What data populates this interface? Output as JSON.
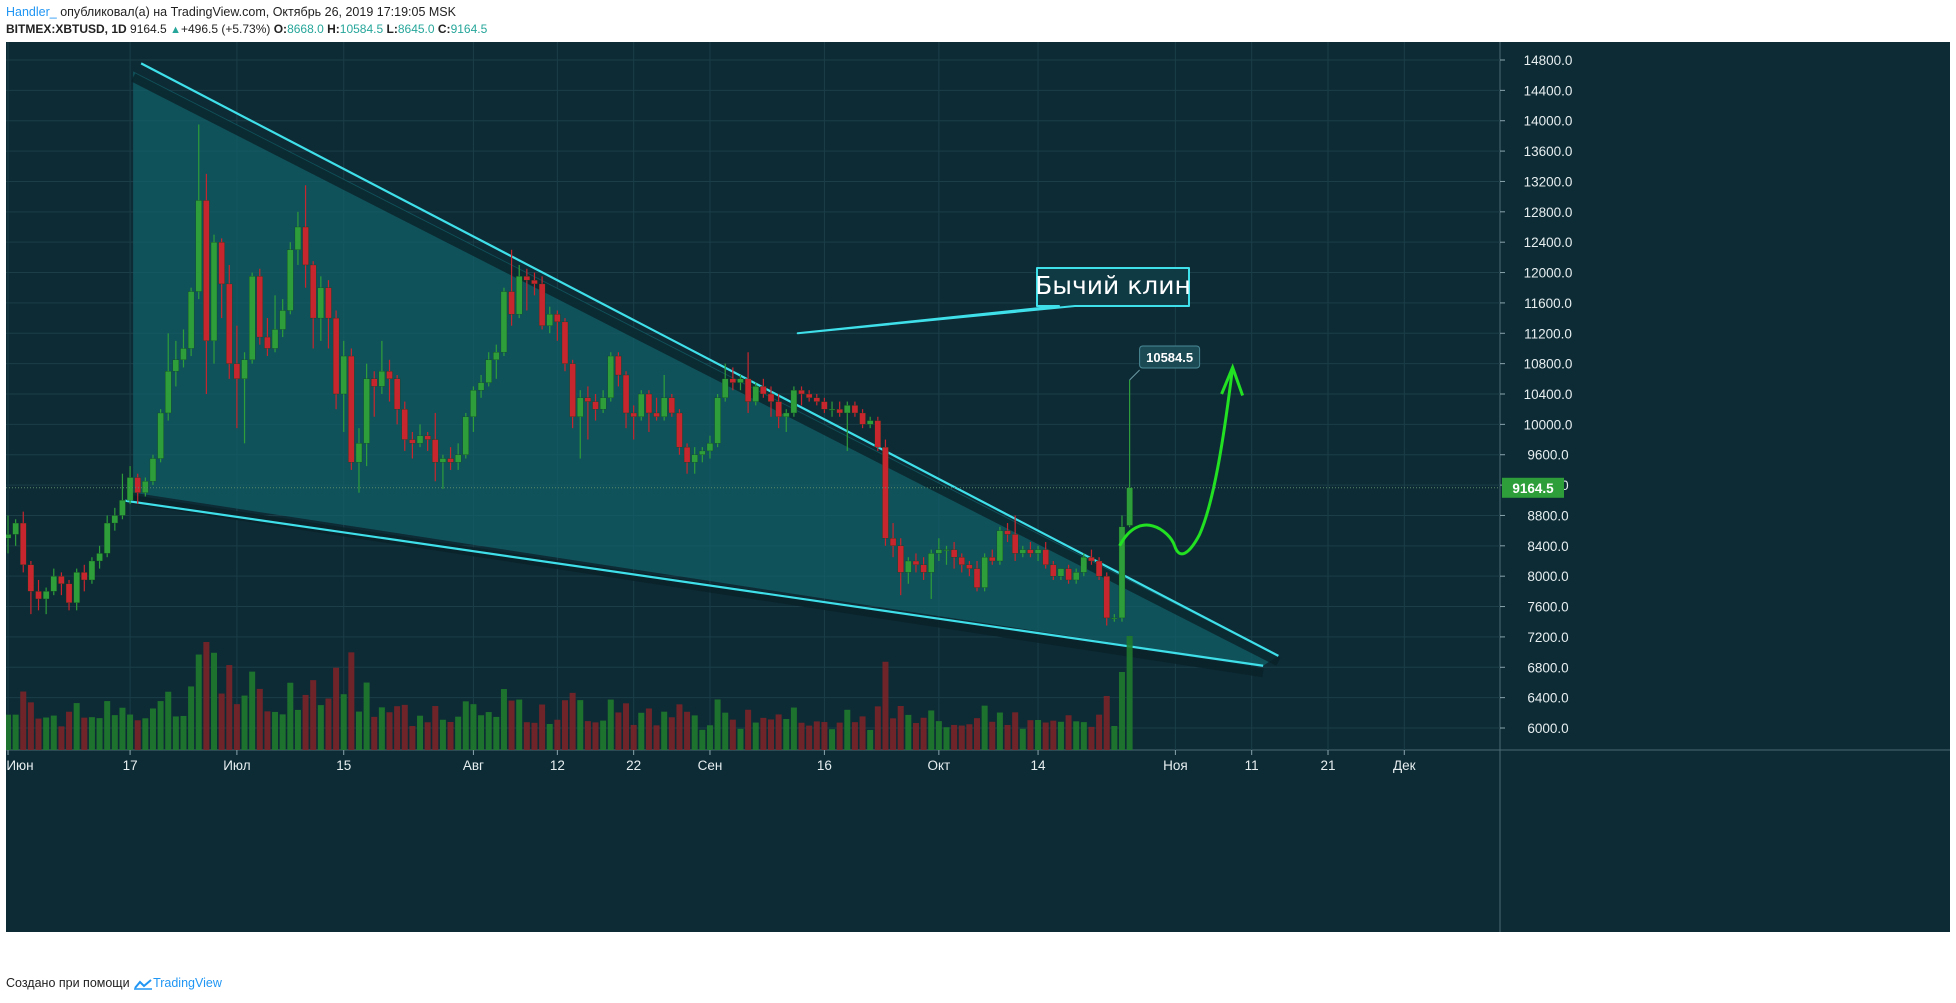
{
  "header": {
    "author": "Handler_",
    "published_text": " опубликовал(а) на TradingView.com, Октябрь 26, 2019 17:19:05 MSK",
    "symbol": "BITMEX:XBTUSD, 1D",
    "last_price": "9164.5",
    "change": "+496.5 (+5.73%)",
    "ohlc": {
      "o_label": "O:",
      "o": "8668.0",
      "h_label": "H:",
      "h": "10584.5",
      "l_label": "L:",
      "l": "8645.0",
      "c_label": "C:",
      "c": "9164.5"
    }
  },
  "footer": {
    "created_with": "Создано при помощи",
    "brand": "TradingView"
  },
  "colors": {
    "background": "#0d2b35",
    "grid": "#1b3e48",
    "up": "#26a69a",
    "up_candle": "#2e9e3a",
    "down_candle": "#c8262e",
    "wedge_line": "#3fe0ea",
    "wedge_fill": "#126169",
    "projection": "#22e022",
    "price_tag": "#2e9e3a"
  },
  "chart_data": {
    "type": "candlestick",
    "title": "",
    "x_tick_labels": [
      "Июн",
      "17",
      "Июл",
      "15",
      "Авг",
      "12",
      "22",
      "Сен",
      "16",
      "Окт",
      "14",
      "Ноя",
      "11",
      "21",
      "Дек"
    ],
    "y_tick_labels": [
      "14800.0",
      "14400.0",
      "14000.0",
      "13600.0",
      "13200.0",
      "12800.0",
      "12400.0",
      "12000.0",
      "11600.0",
      "11200.0",
      "10800.0",
      "10400.0",
      "10000.0",
      "9600.0",
      "9200.0",
      "8800.0",
      "8400.0",
      "8000.0",
      "7600.0",
      "7200.0",
      "6800.0",
      "6400.0",
      "6000.0"
    ],
    "ylim": [
      5800,
      15000
    ],
    "last_price_label": "9164.5",
    "high_marker": {
      "label": "10584.5",
      "value": 10584.5
    },
    "annotation": {
      "text": "Бычий клин"
    },
    "candles": [
      {
        "d": "2019-06-01",
        "o": 8500,
        "h": 8800,
        "l": 8300,
        "c": 8550
      },
      {
        "d": "2019-06-02",
        "o": 8550,
        "h": 8750,
        "l": 8400,
        "c": 8700
      },
      {
        "d": "2019-06-03",
        "o": 8700,
        "h": 8850,
        "l": 8050,
        "c": 8150
      },
      {
        "d": "2019-06-04",
        "o": 8150,
        "h": 8200,
        "l": 7500,
        "c": 7800
      },
      {
        "d": "2019-06-05",
        "o": 7800,
        "h": 7950,
        "l": 7550,
        "c": 7700
      },
      {
        "d": "2019-06-06",
        "o": 7700,
        "h": 7850,
        "l": 7500,
        "c": 7800
      },
      {
        "d": "2019-06-07",
        "o": 7800,
        "h": 8100,
        "l": 7750,
        "c": 8000
      },
      {
        "d": "2019-06-08",
        "o": 8000,
        "h": 8050,
        "l": 7750,
        "c": 7900
      },
      {
        "d": "2019-06-09",
        "o": 7900,
        "h": 7950,
        "l": 7550,
        "c": 7650
      },
      {
        "d": "2019-06-10",
        "o": 7650,
        "h": 8100,
        "l": 7550,
        "c": 8050
      },
      {
        "d": "2019-06-11",
        "o": 8050,
        "h": 8150,
        "l": 7800,
        "c": 7950
      },
      {
        "d": "2019-06-12",
        "o": 7950,
        "h": 8250,
        "l": 7900,
        "c": 8200
      },
      {
        "d": "2019-06-13",
        "o": 8200,
        "h": 8400,
        "l": 8100,
        "c": 8300
      },
      {
        "d": "2019-06-14",
        "o": 8300,
        "h": 8800,
        "l": 8250,
        "c": 8700
      },
      {
        "d": "2019-06-15",
        "o": 8700,
        "h": 8900,
        "l": 8600,
        "c": 8800
      },
      {
        "d": "2019-06-16",
        "o": 8800,
        "h": 9350,
        "l": 8750,
        "c": 9000
      },
      {
        "d": "2019-06-17",
        "o": 9000,
        "h": 9450,
        "l": 8950,
        "c": 9300
      },
      {
        "d": "2019-06-18",
        "o": 9300,
        "h": 9350,
        "l": 8950,
        "c": 9100
      },
      {
        "d": "2019-06-19",
        "o": 9100,
        "h": 9300,
        "l": 9050,
        "c": 9250
      },
      {
        "d": "2019-06-20",
        "o": 9250,
        "h": 9600,
        "l": 9200,
        "c": 9550
      },
      {
        "d": "2019-06-21",
        "o": 9550,
        "h": 10200,
        "l": 9500,
        "c": 10150
      },
      {
        "d": "2019-06-22",
        "o": 10150,
        "h": 11200,
        "l": 10050,
        "c": 10700
      },
      {
        "d": "2019-06-23",
        "o": 10700,
        "h": 11100,
        "l": 10500,
        "c": 10850
      },
      {
        "d": "2019-06-24",
        "o": 10850,
        "h": 11250,
        "l": 10750,
        "c": 11000
      },
      {
        "d": "2019-06-25",
        "o": 11000,
        "h": 11800,
        "l": 10900,
        "c": 11750
      },
      {
        "d": "2019-06-26",
        "o": 11750,
        "h": 13950,
        "l": 11650,
        "c": 12950
      },
      {
        "d": "2019-06-27",
        "o": 12950,
        "h": 13300,
        "l": 10400,
        "c": 11100
      },
      {
        "d": "2019-06-28",
        "o": 11100,
        "h": 12500,
        "l": 10800,
        "c": 12400
      },
      {
        "d": "2019-06-29",
        "o": 12400,
        "h": 12450,
        "l": 11400,
        "c": 11850
      },
      {
        "d": "2019-06-30",
        "o": 11850,
        "h": 12100,
        "l": 10600,
        "c": 10800
      },
      {
        "d": "2019-07-01",
        "o": 10800,
        "h": 11300,
        "l": 9950,
        "c": 10600
      },
      {
        "d": "2019-07-02",
        "o": 10600,
        "h": 10950,
        "l": 9750,
        "c": 10850
      },
      {
        "d": "2019-07-03",
        "o": 10850,
        "h": 12000,
        "l": 10800,
        "c": 11950
      },
      {
        "d": "2019-07-04",
        "o": 11950,
        "h": 12050,
        "l": 11050,
        "c": 11150
      },
      {
        "d": "2019-07-05",
        "o": 11150,
        "h": 11400,
        "l": 10900,
        "c": 11000
      },
      {
        "d": "2019-07-06",
        "o": 11000,
        "h": 11700,
        "l": 10950,
        "c": 11250
      },
      {
        "d": "2019-07-07",
        "o": 11250,
        "h": 11650,
        "l": 11150,
        "c": 11500
      },
      {
        "d": "2019-07-08",
        "o": 11500,
        "h": 12400,
        "l": 11450,
        "c": 12300
      },
      {
        "d": "2019-07-09",
        "o": 12300,
        "h": 12800,
        "l": 12100,
        "c": 12600
      },
      {
        "d": "2019-07-10",
        "o": 12600,
        "h": 13150,
        "l": 11800,
        "c": 12100
      },
      {
        "d": "2019-07-11",
        "o": 12100,
        "h": 12150,
        "l": 11000,
        "c": 11400
      },
      {
        "d": "2019-07-12",
        "o": 11400,
        "h": 11950,
        "l": 11100,
        "c": 11800
      },
      {
        "d": "2019-07-13",
        "o": 11800,
        "h": 11900,
        "l": 11000,
        "c": 11400
      },
      {
        "d": "2019-07-14",
        "o": 11400,
        "h": 11500,
        "l": 10200,
        "c": 10400
      },
      {
        "d": "2019-07-15",
        "o": 10400,
        "h": 11100,
        "l": 9900,
        "c": 10900
      },
      {
        "d": "2019-07-16",
        "o": 10900,
        "h": 11000,
        "l": 9400,
        "c": 9500
      },
      {
        "d": "2019-07-17",
        "o": 9500,
        "h": 9950,
        "l": 9100,
        "c": 9750
      },
      {
        "d": "2019-07-18",
        "o": 9750,
        "h": 10800,
        "l": 9450,
        "c": 10600
      },
      {
        "d": "2019-07-19",
        "o": 10600,
        "h": 10700,
        "l": 10100,
        "c": 10500
      },
      {
        "d": "2019-07-20",
        "o": 10500,
        "h": 11100,
        "l": 10400,
        "c": 10700
      },
      {
        "d": "2019-07-21",
        "o": 10700,
        "h": 10850,
        "l": 10300,
        "c": 10600
      },
      {
        "d": "2019-07-22",
        "o": 10600,
        "h": 10650,
        "l": 10000,
        "c": 10200
      },
      {
        "d": "2019-07-23",
        "o": 10200,
        "h": 10300,
        "l": 9650,
        "c": 9800
      },
      {
        "d": "2019-07-24",
        "o": 9800,
        "h": 9900,
        "l": 9550,
        "c": 9750
      },
      {
        "d": "2019-07-25",
        "o": 9750,
        "h": 10000,
        "l": 9700,
        "c": 9850
      },
      {
        "d": "2019-07-26",
        "o": 9850,
        "h": 9900,
        "l": 9650,
        "c": 9800
      },
      {
        "d": "2019-07-27",
        "o": 9800,
        "h": 10150,
        "l": 9250,
        "c": 9500
      },
      {
        "d": "2019-07-28",
        "o": 9500,
        "h": 9600,
        "l": 9150,
        "c": 9550
      },
      {
        "d": "2019-07-29",
        "o": 9550,
        "h": 9700,
        "l": 9400,
        "c": 9500
      },
      {
        "d": "2019-07-30",
        "o": 9500,
        "h": 9750,
        "l": 9400,
        "c": 9600
      },
      {
        "d": "2019-07-31",
        "o": 9600,
        "h": 10150,
        "l": 9550,
        "c": 10100
      },
      {
        "d": "2019-08-01",
        "o": 10100,
        "h": 10500,
        "l": 9900,
        "c": 10450
      },
      {
        "d": "2019-08-02",
        "o": 10450,
        "h": 10650,
        "l": 10350,
        "c": 10550
      },
      {
        "d": "2019-08-03",
        "o": 10550,
        "h": 10950,
        "l": 10500,
        "c": 10850
      },
      {
        "d": "2019-08-04",
        "o": 10850,
        "h": 11050,
        "l": 10600,
        "c": 10950
      },
      {
        "d": "2019-08-05",
        "o": 10950,
        "h": 11800,
        "l": 10900,
        "c": 11750
      },
      {
        "d": "2019-08-06",
        "o": 11750,
        "h": 12300,
        "l": 11300,
        "c": 11450
      },
      {
        "d": "2019-08-07",
        "o": 11450,
        "h": 12100,
        "l": 11400,
        "c": 11950
      },
      {
        "d": "2019-08-08",
        "o": 11950,
        "h": 12050,
        "l": 11500,
        "c": 11900
      },
      {
        "d": "2019-08-09",
        "o": 11900,
        "h": 12000,
        "l": 11700,
        "c": 11850
      },
      {
        "d": "2019-08-10",
        "o": 11850,
        "h": 11950,
        "l": 11250,
        "c": 11300
      },
      {
        "d": "2019-08-11",
        "o": 11300,
        "h": 11550,
        "l": 11200,
        "c": 11450
      },
      {
        "d": "2019-08-12",
        "o": 11450,
        "h": 11500,
        "l": 11100,
        "c": 11350
      },
      {
        "d": "2019-08-13",
        "o": 11350,
        "h": 11400,
        "l": 10700,
        "c": 10800
      },
      {
        "d": "2019-08-14",
        "o": 10800,
        "h": 10850,
        "l": 9950,
        "c": 10100
      },
      {
        "d": "2019-08-15",
        "o": 10100,
        "h": 10450,
        "l": 9550,
        "c": 10350
      },
      {
        "d": "2019-08-16",
        "o": 10350,
        "h": 10500,
        "l": 9800,
        "c": 10300
      },
      {
        "d": "2019-08-17",
        "o": 10300,
        "h": 10400,
        "l": 10050,
        "c": 10200
      },
      {
        "d": "2019-08-18",
        "o": 10200,
        "h": 10450,
        "l": 10150,
        "c": 10350
      },
      {
        "d": "2019-08-19",
        "o": 10350,
        "h": 10950,
        "l": 10300,
        "c": 10900
      },
      {
        "d": "2019-08-20",
        "o": 10900,
        "h": 10950,
        "l": 10500,
        "c": 10650
      },
      {
        "d": "2019-08-21",
        "o": 10650,
        "h": 10700,
        "l": 9950,
        "c": 10150
      },
      {
        "d": "2019-08-22",
        "o": 10150,
        "h": 10250,
        "l": 9800,
        "c": 10100
      },
      {
        "d": "2019-08-23",
        "o": 10100,
        "h": 10450,
        "l": 10050,
        "c": 10400
      },
      {
        "d": "2019-08-24",
        "o": 10400,
        "h": 10450,
        "l": 9900,
        "c": 10150
      },
      {
        "d": "2019-08-25",
        "o": 10150,
        "h": 10350,
        "l": 10050,
        "c": 10100
      },
      {
        "d": "2019-08-26",
        "o": 10100,
        "h": 10650,
        "l": 10050,
        "c": 10350
      },
      {
        "d": "2019-08-27",
        "o": 10350,
        "h": 10400,
        "l": 10100,
        "c": 10150
      },
      {
        "d": "2019-08-28",
        "o": 10150,
        "h": 10200,
        "l": 9600,
        "c": 9700
      },
      {
        "d": "2019-08-29",
        "o": 9700,
        "h": 9750,
        "l": 9350,
        "c": 9500
      },
      {
        "d": "2019-08-30",
        "o": 9500,
        "h": 9700,
        "l": 9350,
        "c": 9600
      },
      {
        "d": "2019-08-31",
        "o": 9600,
        "h": 9700,
        "l": 9500,
        "c": 9650
      },
      {
        "d": "2019-09-01",
        "o": 9650,
        "h": 9850,
        "l": 9550,
        "c": 9750
      },
      {
        "d": "2019-09-02",
        "o": 9750,
        "h": 10400,
        "l": 9700,
        "c": 10350
      },
      {
        "d": "2019-09-03",
        "o": 10350,
        "h": 10800,
        "l": 10300,
        "c": 10600
      },
      {
        "d": "2019-09-04",
        "o": 10600,
        "h": 10750,
        "l": 10450,
        "c": 10550
      },
      {
        "d": "2019-09-05",
        "o": 10550,
        "h": 10650,
        "l": 10450,
        "c": 10600
      },
      {
        "d": "2019-09-06",
        "o": 10600,
        "h": 10950,
        "l": 10150,
        "c": 10300
      },
      {
        "d": "2019-09-07",
        "o": 10300,
        "h": 10550,
        "l": 10250,
        "c": 10500
      },
      {
        "d": "2019-09-08",
        "o": 10500,
        "h": 10600,
        "l": 10350,
        "c": 10400
      },
      {
        "d": "2019-09-09",
        "o": 10400,
        "h": 10500,
        "l": 10100,
        "c": 10300
      },
      {
        "d": "2019-09-10",
        "o": 10300,
        "h": 10400,
        "l": 9950,
        "c": 10100
      },
      {
        "d": "2019-09-11",
        "o": 10100,
        "h": 10200,
        "l": 9900,
        "c": 10150
      },
      {
        "d": "2019-09-12",
        "o": 10150,
        "h": 10500,
        "l": 10100,
        "c": 10450
      },
      {
        "d": "2019-09-13",
        "o": 10450,
        "h": 10500,
        "l": 10250,
        "c": 10400
      },
      {
        "d": "2019-09-14",
        "o": 10400,
        "h": 10450,
        "l": 10300,
        "c": 10350
      },
      {
        "d": "2019-09-15",
        "o": 10350,
        "h": 10400,
        "l": 10250,
        "c": 10300
      },
      {
        "d": "2019-09-16",
        "o": 10300,
        "h": 10350,
        "l": 10150,
        "c": 10200
      },
      {
        "d": "2019-09-17",
        "o": 10200,
        "h": 10300,
        "l": 10100,
        "c": 10200
      },
      {
        "d": "2019-09-18",
        "o": 10200,
        "h": 10300,
        "l": 10100,
        "c": 10150
      },
      {
        "d": "2019-09-19",
        "o": 10150,
        "h": 10300,
        "l": 9650,
        "c": 10250
      },
      {
        "d": "2019-09-20",
        "o": 10250,
        "h": 10300,
        "l": 10100,
        "c": 10150
      },
      {
        "d": "2019-09-21",
        "o": 10150,
        "h": 10200,
        "l": 9950,
        "c": 10000
      },
      {
        "d": "2019-09-22",
        "o": 10000,
        "h": 10100,
        "l": 9950,
        "c": 10050
      },
      {
        "d": "2019-09-23",
        "o": 10050,
        "h": 10100,
        "l": 9650,
        "c": 9700
      },
      {
        "d": "2019-09-24",
        "o": 9700,
        "h": 9800,
        "l": 8400,
        "c": 8500
      },
      {
        "d": "2019-09-25",
        "o": 8500,
        "h": 8700,
        "l": 8250,
        "c": 8400
      },
      {
        "d": "2019-09-26",
        "o": 8400,
        "h": 8500,
        "l": 7750,
        "c": 8050
      },
      {
        "d": "2019-09-27",
        "o": 8050,
        "h": 8250,
        "l": 7900,
        "c": 8200
      },
      {
        "d": "2019-09-28",
        "o": 8200,
        "h": 8300,
        "l": 8050,
        "c": 8150
      },
      {
        "d": "2019-09-29",
        "o": 8150,
        "h": 8250,
        "l": 7950,
        "c": 8050
      },
      {
        "d": "2019-09-30",
        "o": 8050,
        "h": 8350,
        "l": 7700,
        "c": 8300
      },
      {
        "d": "2019-10-01",
        "o": 8300,
        "h": 8500,
        "l": 8200,
        "c": 8350
      },
      {
        "d": "2019-10-02",
        "o": 8350,
        "h": 8400,
        "l": 8150,
        "c": 8350
      },
      {
        "d": "2019-10-03",
        "o": 8350,
        "h": 8450,
        "l": 8100,
        "c": 8250
      },
      {
        "d": "2019-10-04",
        "o": 8250,
        "h": 8300,
        "l": 8050,
        "c": 8150
      },
      {
        "d": "2019-10-05",
        "o": 8150,
        "h": 8200,
        "l": 8000,
        "c": 8100
      },
      {
        "d": "2019-10-06",
        "o": 8100,
        "h": 8200,
        "l": 7800,
        "c": 7850
      },
      {
        "d": "2019-10-07",
        "o": 7850,
        "h": 8300,
        "l": 7800,
        "c": 8250
      },
      {
        "d": "2019-10-08",
        "o": 8250,
        "h": 8350,
        "l": 8150,
        "c": 8200
      },
      {
        "d": "2019-10-09",
        "o": 8200,
        "h": 8650,
        "l": 8150,
        "c": 8600
      },
      {
        "d": "2019-10-10",
        "o": 8600,
        "h": 8700,
        "l": 8450,
        "c": 8550
      },
      {
        "d": "2019-10-11",
        "o": 8550,
        "h": 8800,
        "l": 8200,
        "c": 8300
      },
      {
        "d": "2019-10-12",
        "o": 8300,
        "h": 8400,
        "l": 8250,
        "c": 8350
      },
      {
        "d": "2019-10-13",
        "o": 8350,
        "h": 8450,
        "l": 8250,
        "c": 8300
      },
      {
        "d": "2019-10-14",
        "o": 8300,
        "h": 8400,
        "l": 8200,
        "c": 8350
      },
      {
        "d": "2019-10-15",
        "o": 8350,
        "h": 8450,
        "l": 8100,
        "c": 8150
      },
      {
        "d": "2019-10-16",
        "o": 8150,
        "h": 8200,
        "l": 7950,
        "c": 8000
      },
      {
        "d": "2019-10-17",
        "o": 8000,
        "h": 8100,
        "l": 7950,
        "c": 8100
      },
      {
        "d": "2019-10-18",
        "o": 8100,
        "h": 8150,
        "l": 7900,
        "c": 7950
      },
      {
        "d": "2019-10-19",
        "o": 7950,
        "h": 8100,
        "l": 7900,
        "c": 8050
      },
      {
        "d": "2019-10-20",
        "o": 8050,
        "h": 8300,
        "l": 8000,
        "c": 8250
      },
      {
        "d": "2019-10-21",
        "o": 8250,
        "h": 8350,
        "l": 8150,
        "c": 8200
      },
      {
        "d": "2019-10-22",
        "o": 8200,
        "h": 8250,
        "l": 7950,
        "c": 8000
      },
      {
        "d": "2019-10-23",
        "o": 8000,
        "h": 8050,
        "l": 7350,
        "c": 7450
      },
      {
        "d": "2019-10-24",
        "o": 7450,
        "h": 7500,
        "l": 7400,
        "c": 7450
      },
      {
        "d": "2019-10-25",
        "o": 7450,
        "h": 8800,
        "l": 7400,
        "c": 8650
      },
      {
        "d": "2019-10-26",
        "o": 8668,
        "h": 10584.5,
        "l": 8645,
        "c": 9164.5
      }
    ],
    "volume_series": [
      {
        "d": "2019-10-26",
        "v": 95
      },
      {
        "d": "2019-10-25",
        "v": 65
      },
      {
        "d": "2019-10-24",
        "v": 20
      },
      {
        "d": "2019-10-23",
        "v": 45
      }
    ]
  }
}
